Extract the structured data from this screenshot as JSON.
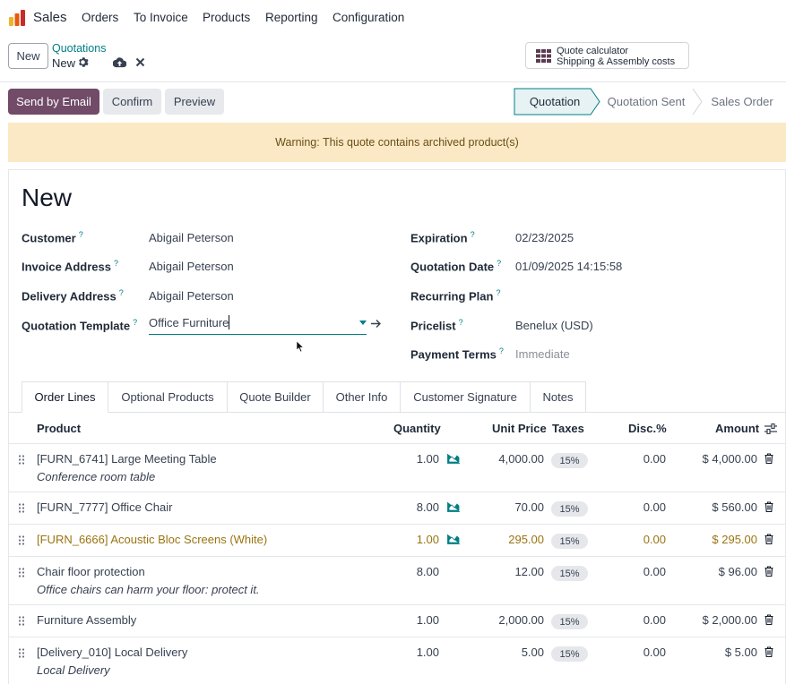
{
  "app": {
    "name": "Sales",
    "logo_icon": "sales-logo-icon"
  },
  "nav": [
    "Orders",
    "To Invoice",
    "Products",
    "Reporting",
    "Configuration"
  ],
  "control": {
    "new_label": "New",
    "breadcrumb_parent": "Quotations",
    "breadcrumb_current": "New",
    "quote_calc_title": "Quote calculator",
    "quote_calc_sub": "Shipping & Assembly costs"
  },
  "actions": {
    "send_email": "Send by Email",
    "confirm": "Confirm",
    "preview": "Preview"
  },
  "stages": [
    {
      "label": "Quotation",
      "active": true
    },
    {
      "label": "Quotation Sent",
      "active": false
    },
    {
      "label": "Sales Order",
      "active": false
    }
  ],
  "warning": "Warning: This quote contains archived product(s)",
  "record": {
    "title": "New",
    "left_fields": [
      {
        "label": "Customer",
        "value": "Abigail Peterson"
      },
      {
        "label": "Invoice Address",
        "value": "Abigail Peterson"
      },
      {
        "label": "Delivery Address",
        "value": "Abigail Peterson"
      },
      {
        "label": "Quotation Template",
        "value": "Office Furniture"
      }
    ],
    "right_fields": [
      {
        "label": "Expiration",
        "value": "02/23/2025"
      },
      {
        "label": "Quotation Date",
        "value": "01/09/2025 14:15:58"
      },
      {
        "label": "Recurring Plan",
        "value": ""
      },
      {
        "label": "Pricelist",
        "value": "Benelux (USD)"
      },
      {
        "label": "Payment Terms",
        "value": "Immediate"
      }
    ],
    "help_mark": "?"
  },
  "tabs": [
    "Order Lines",
    "Optional Products",
    "Quote Builder",
    "Other Info",
    "Customer Signature",
    "Notes"
  ],
  "table": {
    "headers": {
      "product": "Product",
      "quantity": "Quantity",
      "unit_price": "Unit Price",
      "taxes": "Taxes",
      "disc": "Disc.%",
      "amount": "Amount"
    },
    "rows": [
      {
        "product": "[FURN_6741] Large Meeting Table",
        "description": "Conference room table",
        "quantity": "1.00",
        "unit_price": "4,000.00",
        "tax": "15%",
        "disc": "0.00",
        "amount": "$ 4,000.00",
        "forecast": true,
        "warn": false
      },
      {
        "product": "[FURN_7777] Office Chair",
        "description": "",
        "quantity": "8.00",
        "unit_price": "70.00",
        "tax": "15%",
        "disc": "0.00",
        "amount": "$ 560.00",
        "forecast": true,
        "warn": false
      },
      {
        "product": "[FURN_6666] Acoustic Bloc Screens (White)",
        "description": "",
        "quantity": "1.00",
        "unit_price": "295.00",
        "tax": "15%",
        "disc": "0.00",
        "amount": "$ 295.00",
        "forecast": true,
        "warn": true
      },
      {
        "product": "Chair floor protection",
        "description": "Office chairs can harm your floor: protect it.",
        "quantity": "8.00",
        "unit_price": "12.00",
        "tax": "15%",
        "disc": "0.00",
        "amount": "$ 96.00",
        "forecast": false,
        "warn": false
      },
      {
        "product": "Furniture Assembly",
        "description": "",
        "quantity": "1.00",
        "unit_price": "2,000.00",
        "tax": "15%",
        "disc": "0.00",
        "amount": "$ 2,000.00",
        "forecast": false,
        "warn": false
      },
      {
        "product": "[Delivery_010] Local Delivery",
        "description": "Local Delivery",
        "quantity": "1.00",
        "unit_price": "5.00",
        "tax": "15%",
        "disc": "0.00",
        "amount": "$ 5.00",
        "forecast": false,
        "warn": false
      }
    ]
  },
  "colors": {
    "primary": "#714b67",
    "link": "#017e84",
    "warning_bg": "#fbe9c6",
    "archived_text": "#9a7412"
  }
}
